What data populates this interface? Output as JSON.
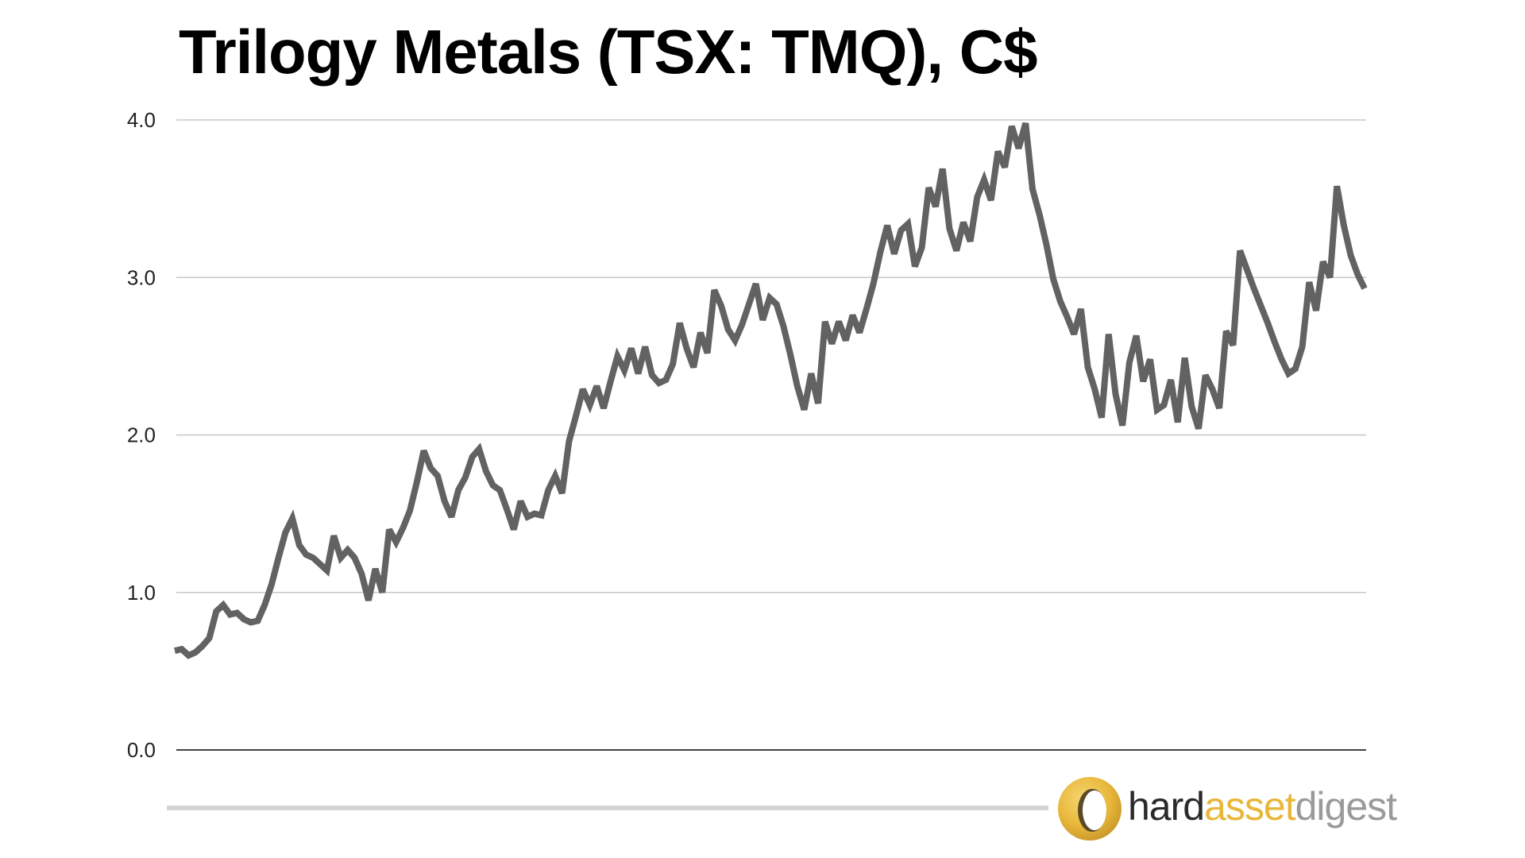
{
  "title": "Trilogy Metals (TSX: TMQ), C$",
  "logo": {
    "part1": "hard",
    "part2": "asset",
    "part3": "digest"
  },
  "colors": {
    "line": "#626262",
    "grid": "#c8c8c8",
    "axis": "#444444",
    "accent": "#e8b73a"
  },
  "chart_data": {
    "type": "line",
    "title": "Trilogy Metals (TSX: TMQ), C$",
    "xlabel": "",
    "ylabel": "",
    "ylim": [
      0,
      4
    ],
    "yticks": [
      0,
      1,
      2,
      3,
      4
    ],
    "ytick_labels": [
      "0.0",
      "1.0",
      "2.0",
      "3.0",
      "4.0"
    ],
    "grid": true,
    "legend": "none",
    "series": [
      {
        "values": [
          0.63,
          0.64,
          0.6,
          0.62,
          0.66,
          0.71,
          0.88,
          0.92,
          0.86,
          0.87,
          0.83,
          0.81,
          0.82,
          0.92,
          1.05,
          1.22,
          1.38,
          1.47,
          1.3,
          1.24,
          1.22,
          1.18,
          1.14,
          1.36,
          1.22,
          1.27,
          1.22,
          1.12,
          0.95,
          1.15,
          1.0,
          1.4,
          1.32,
          1.41,
          1.52,
          1.7,
          1.9,
          1.79,
          1.74,
          1.58,
          1.48,
          1.65,
          1.73,
          1.86,
          1.91,
          1.77,
          1.68,
          1.65,
          1.53,
          1.4,
          1.58,
          1.48,
          1.5,
          1.49,
          1.65,
          1.74,
          1.63,
          1.96,
          2.12,
          2.29,
          2.19,
          2.31,
          2.17,
          2.34,
          2.5,
          2.41,
          2.55,
          2.39,
          2.56,
          2.38,
          2.33,
          2.35,
          2.45,
          2.71,
          2.55,
          2.43,
          2.65,
          2.52,
          2.92,
          2.82,
          2.67,
          2.6,
          2.7,
          2.83,
          2.96,
          2.73,
          2.87,
          2.83,
          2.69,
          2.51,
          2.31,
          2.16,
          2.39,
          2.2,
          2.72,
          2.58,
          2.72,
          2.6,
          2.76,
          2.65,
          2.8,
          2.96,
          3.16,
          3.33,
          3.15,
          3.3,
          3.34,
          3.07,
          3.19,
          3.57,
          3.45,
          3.69,
          3.31,
          3.17,
          3.35,
          3.23,
          3.51,
          3.62,
          3.49,
          3.8,
          3.7,
          3.96,
          3.82,
          3.98,
          3.56,
          3.4,
          3.21,
          2.99,
          2.85,
          2.75,
          2.64,
          2.8,
          2.43,
          2.29,
          2.11,
          2.64,
          2.26,
          2.06,
          2.46,
          2.63,
          2.34,
          2.48,
          2.16,
          2.19,
          2.35,
          2.08,
          2.49,
          2.18,
          2.04,
          2.38,
          2.29,
          2.17,
          2.66,
          2.57,
          3.17,
          3.05,
          2.93,
          2.82,
          2.71,
          2.59,
          2.48,
          2.39,
          2.42,
          2.56,
          2.97,
          2.79,
          3.1,
          3.0,
          3.58,
          3.33,
          3.14,
          3.02,
          2.93
        ]
      }
    ]
  }
}
